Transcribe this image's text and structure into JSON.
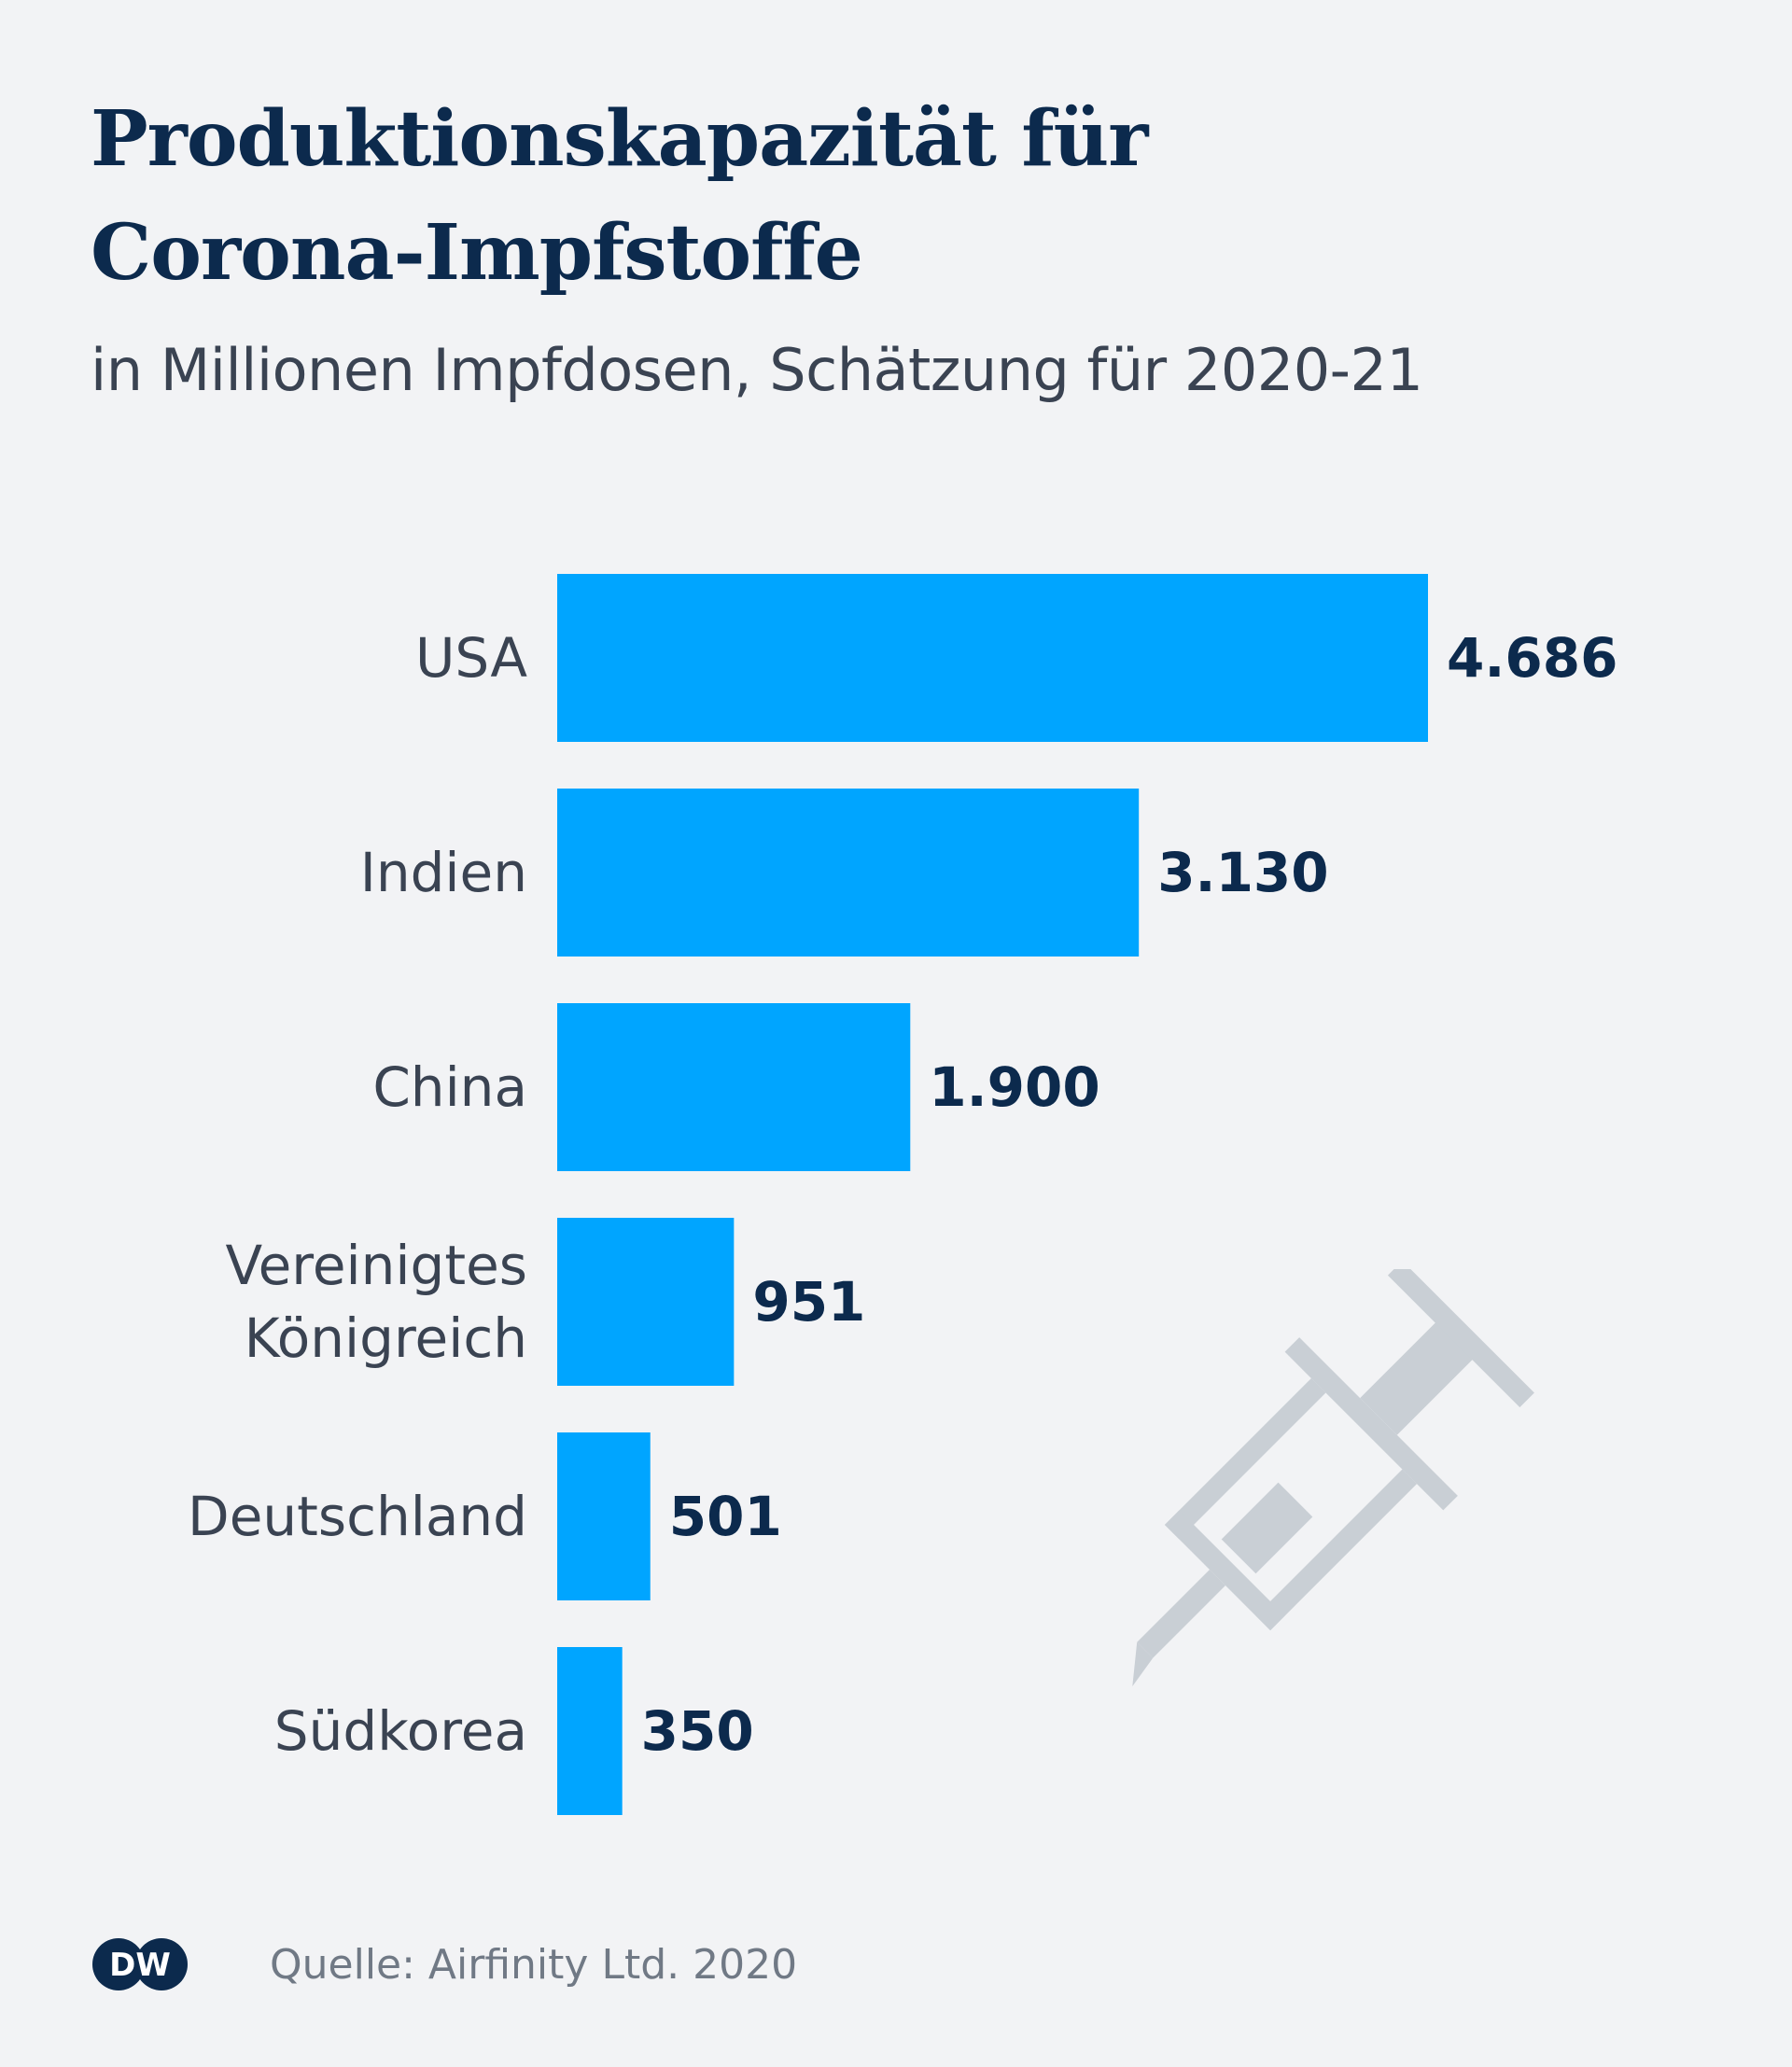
{
  "header": {
    "title_line1": "Produktionskapazität für",
    "title_line2": "Corona-Impfstoffe",
    "subtitle": "in Millionen Impfdosen, Schätzung für 2020-21"
  },
  "footer": {
    "logo_text": "DW",
    "source": "Quelle: Airfinity Ltd. 2020"
  },
  "colors": {
    "bar": "#00a5ff",
    "value_label": "#0c2a4d",
    "category_label": "#3a4352",
    "background": "#f2f3f5",
    "icon": "#c9cfd5"
  },
  "icons": [
    "syringe-icon",
    "dw-logo-icon"
  ],
  "chart_data": {
    "type": "bar",
    "orientation": "horizontal",
    "categories": [
      [
        "USA"
      ],
      [
        "Indien"
      ],
      [
        "China"
      ],
      [
        "Vereinigtes",
        "Königreich"
      ],
      [
        "Deutschland"
      ],
      [
        "Südkorea"
      ]
    ],
    "values": [
      4686,
      3130,
      1900,
      951,
      501,
      350
    ],
    "value_labels": [
      "4.686",
      "3.130",
      "1.900",
      "951",
      "501",
      "350"
    ],
    "xlim": [
      0,
      4686
    ],
    "grid": false,
    "legend": "none"
  }
}
